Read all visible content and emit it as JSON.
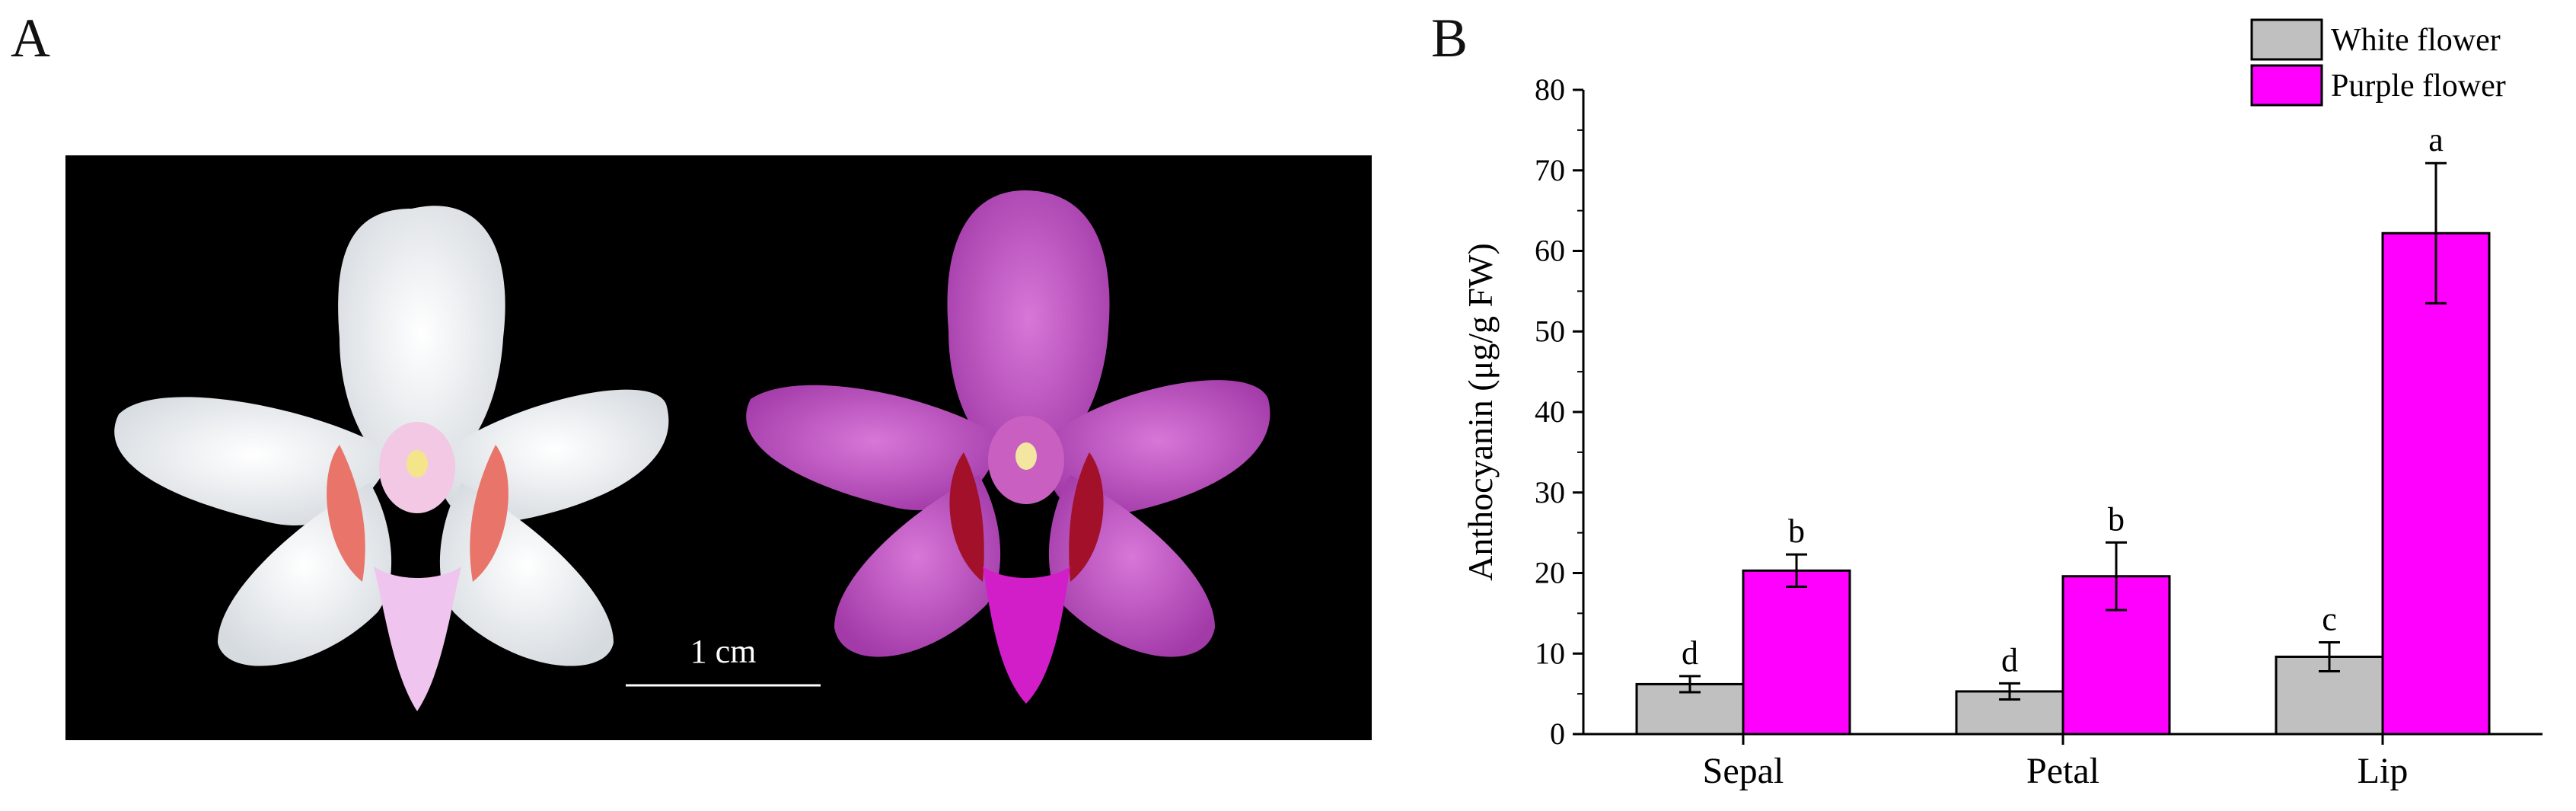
{
  "panels": {
    "a": "A",
    "b": "B"
  },
  "photo": {
    "scale_bar_label": "1 cm"
  },
  "colors": {
    "white_flower": "#c0c0c0",
    "purple_flower": "#ff00ff",
    "axis": "#000000"
  },
  "chart_data": {
    "type": "bar",
    "categories": [
      "Sepal",
      "Petal",
      "Lip"
    ],
    "series": [
      {
        "name": "White flower",
        "values": [
          6.2,
          5.3,
          9.6
        ],
        "errors": [
          1.0,
          1.0,
          1.8
        ],
        "letters": [
          "d",
          "d",
          "c"
        ]
      },
      {
        "name": "Purple flower",
        "values": [
          20.3,
          19.6,
          62.2
        ],
        "errors": [
          2.0,
          4.2,
          8.7
        ],
        "letters": [
          "b",
          "b",
          "a"
        ]
      }
    ],
    "xlabel": "",
    "ylabel": "Anthocyanin (μg/g FW)",
    "ylim": [
      0,
      80
    ],
    "yticks": [
      0,
      10,
      20,
      30,
      40,
      50,
      60,
      70,
      80
    ],
    "grid": false,
    "legend": "top-right"
  }
}
